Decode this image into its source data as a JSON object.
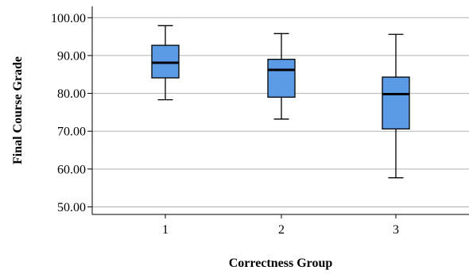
{
  "chart_data": {
    "type": "box",
    "title": "",
    "xlabel": "Correctness Group",
    "ylabel": "Final Course Grade",
    "categories": [
      "1",
      "2",
      "3"
    ],
    "ylim": [
      48,
      103
    ],
    "yticks": [
      50,
      60,
      70,
      80,
      90,
      100
    ],
    "ytick_labels": [
      "50.00",
      "60.00",
      "70.00",
      "80.00",
      "90.00",
      "100.00"
    ],
    "grid": true,
    "boxes": [
      {
        "category": "1",
        "min": 78.3,
        "q1": 84.1,
        "median": 88.1,
        "q3": 92.7,
        "max": 97.9
      },
      {
        "category": "2",
        "min": 73.2,
        "q1": 79.0,
        "median": 86.2,
        "q3": 89.0,
        "max": 95.8
      },
      {
        "category": "3",
        "min": 57.7,
        "q1": 70.6,
        "median": 79.8,
        "q3": 84.3,
        "max": 95.6
      }
    ],
    "colors": {
      "box_fill": "#5b9be6",
      "line": "#000000",
      "grid": "#b3b3b3"
    }
  }
}
